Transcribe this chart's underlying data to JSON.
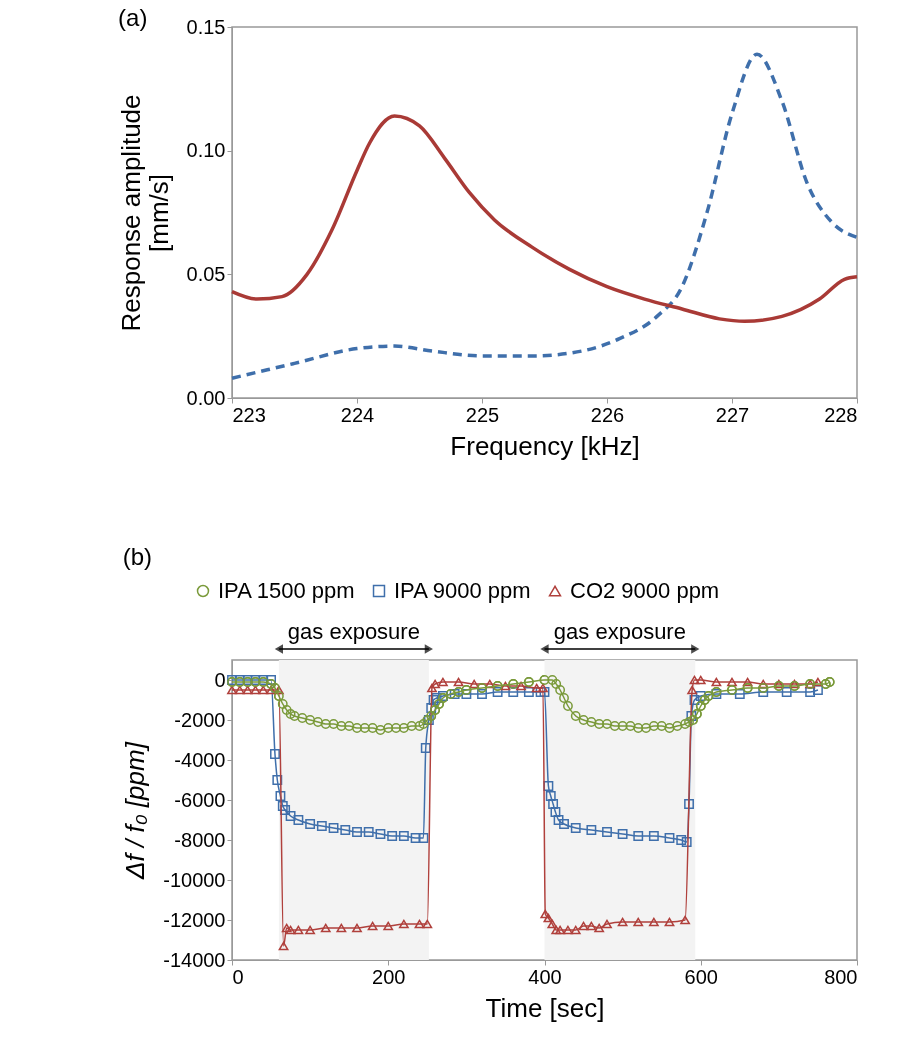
{
  "chart_data": [
    {
      "type": "line",
      "title": "(a)",
      "xlabel": "Frequency [kHz]",
      "ylabel": "Response amplitude [mm/s]",
      "xlim": [
        223,
        228
      ],
      "xticks": [
        223,
        224,
        225,
        226,
        227,
        228
      ],
      "ylim": [
        0,
        0.15
      ],
      "yticks": [
        {
          "value": 0,
          "label": "0.00"
        },
        {
          "value": 0.05,
          "label": "0.05"
        },
        {
          "value": 0.1,
          "label": "0.10"
        },
        {
          "value": 0.15,
          "label": "0.15"
        }
      ],
      "grid": false,
      "series": [
        {
          "color": "#a93a36",
          "line_style": "solid",
          "x": [
            223,
            223.2,
            223.4,
            223.6,
            223.8,
            224,
            224.1,
            224.3,
            224.5,
            224.7,
            224.9,
            225.1,
            225.4,
            225.7,
            226,
            226.3,
            226.6,
            226.9,
            227.1,
            227.4,
            227.7,
            227.9,
            228
          ],
          "values": [
            0.043,
            0.04,
            0.041,
            0.05,
            0.068,
            0.092,
            0.103,
            0.114,
            0.11,
            0.097,
            0.083,
            0.072,
            0.061,
            0.052,
            0.045,
            0.04,
            0.036,
            0.032,
            0.031,
            0.033,
            0.04,
            0.048,
            0.049
          ]
        },
        {
          "color": "#3f6fab",
          "line_style": "dashed",
          "x": [
            223,
            223.5,
            224,
            224.3,
            224.6,
            225,
            225.4,
            225.8,
            226.1,
            226.4,
            226.6,
            226.8,
            227,
            227.2,
            227.4,
            227.6,
            227.8,
            228
          ],
          "values": [
            0.008,
            0.014,
            0.02,
            0.021,
            0.019,
            0.017,
            0.017,
            0.019,
            0.024,
            0.033,
            0.045,
            0.075,
            0.115,
            0.139,
            0.12,
            0.087,
            0.071,
            0.065
          ]
        }
      ]
    },
    {
      "type": "line",
      "title": "(b)",
      "xlabel": "Time [sec]",
      "ylabel": "Δf / f₀ [ppm]",
      "xlim": [
        0,
        800
      ],
      "xticks": [
        0,
        200,
        400,
        600,
        800
      ],
      "ylim": [
        -14000,
        1000
      ],
      "yticks": [
        -14000,
        -12000,
        -10000,
        -8000,
        -6000,
        -4000,
        -2000,
        0
      ],
      "grid": false,
      "legend": "top",
      "bands": [
        {
          "axis": "x",
          "from": 60,
          "to": 252,
          "label": "gas exposure",
          "color": "#f3f3f3"
        },
        {
          "axis": "x",
          "from": 400,
          "to": 593,
          "label": "gas exposure",
          "color": "#f3f3f3"
        }
      ],
      "series": [
        {
          "name": "IPA 1500 ppm",
          "color": "#7a9a3a",
          "marker": "circle",
          "line_style": "solid",
          "x": [
            0,
            10,
            20,
            30,
            40,
            50,
            55,
            60,
            65,
            70,
            75,
            80,
            90,
            100,
            110,
            120,
            130,
            140,
            150,
            160,
            170,
            180,
            190,
            200,
            210,
            220,
            230,
            240,
            245,
            250,
            255,
            260,
            265,
            270,
            280,
            290,
            300,
            320,
            340,
            360,
            380,
            400,
            410,
            415,
            420,
            425,
            430,
            440,
            450,
            460,
            470,
            480,
            490,
            500,
            510,
            520,
            530,
            540,
            550,
            560,
            570,
            580,
            585,
            590,
            595,
            600,
            605,
            610,
            620,
            640,
            660,
            680,
            700,
            720,
            740,
            760,
            765
          ],
          "values": [
            -100,
            -100,
            -100,
            -100,
            -100,
            -200,
            -400,
            -800,
            -1200,
            -1500,
            -1700,
            -1800,
            -1900,
            -2000,
            -2100,
            -2200,
            -2200,
            -2300,
            -2300,
            -2400,
            -2400,
            -2400,
            -2500,
            -2400,
            -2400,
            -2400,
            -2300,
            -2300,
            -2200,
            -2000,
            -1800,
            -1500,
            -1200,
            -900,
            -700,
            -600,
            -500,
            -400,
            -300,
            -200,
            -100,
            0,
            0,
            -200,
            -500,
            -900,
            -1300,
            -1800,
            -2000,
            -2100,
            -2200,
            -2200,
            -2300,
            -2300,
            -2300,
            -2400,
            -2400,
            -2300,
            -2300,
            -2400,
            -2300,
            -2200,
            -2100,
            -2000,
            -1700,
            -1300,
            -1000,
            -800,
            -600,
            -500,
            -400,
            -400,
            -300,
            -300,
            -200,
            -200,
            -100
          ]
        },
        {
          "name": "IPA 9000 ppm",
          "color": "#3f6fab",
          "marker": "square",
          "line_style": "solid",
          "x": [
            0,
            10,
            20,
            30,
            40,
            50,
            55,
            58,
            62,
            65,
            68,
            75,
            85,
            100,
            115,
            130,
            145,
            160,
            175,
            190,
            205,
            220,
            235,
            245,
            248,
            252,
            255,
            258,
            262,
            270,
            285,
            300,
            320,
            340,
            360,
            380,
            395,
            400,
            405,
            408,
            411,
            414,
            418,
            425,
            440,
            460,
            480,
            500,
            520,
            540,
            560,
            575,
            582,
            585,
            588,
            592,
            600,
            620,
            650,
            680,
            710,
            740,
            750
          ],
          "values": [
            0,
            0,
            0,
            0,
            0,
            0,
            -3700,
            -5000,
            -5800,
            -6300,
            -6500,
            -6800,
            -7000,
            -7200,
            -7300,
            -7400,
            -7500,
            -7600,
            -7600,
            -7700,
            -7800,
            -7800,
            -7900,
            -7900,
            -3400,
            -2000,
            -1400,
            -1000,
            -900,
            -800,
            -700,
            -700,
            -700,
            -600,
            -600,
            -600,
            -600,
            -600,
            -5300,
            -5800,
            -6200,
            -6600,
            -7000,
            -7200,
            -7400,
            -7500,
            -7600,
            -7700,
            -7800,
            -7800,
            -7900,
            -8000,
            -8100,
            -6200,
            -1800,
            -1000,
            -800,
            -700,
            -700,
            -600,
            -600,
            -600,
            -500
          ]
        },
        {
          "name": "CO2 9000 ppm",
          "color": "#b0403c",
          "marker": "triangle",
          "line_style": "solid",
          "x": [
            0,
            10,
            20,
            30,
            40,
            50,
            60,
            66,
            70,
            75,
            85,
            100,
            120,
            140,
            160,
            180,
            200,
            220,
            240,
            250,
            256,
            260,
            270,
            290,
            310,
            330,
            350,
            370,
            390,
            398,
            401,
            405,
            410,
            415,
            420,
            430,
            440,
            450,
            460,
            470,
            480,
            500,
            520,
            540,
            560,
            580,
            589,
            592,
            600,
            620,
            640,
            660,
            680,
            700,
            720,
            740,
            750
          ],
          "values": [
            -500,
            -500,
            -500,
            -500,
            -500,
            -500,
            -500,
            -13300,
            -12400,
            -12500,
            -12500,
            -12500,
            -12400,
            -12400,
            -12400,
            -12300,
            -12300,
            -12200,
            -12200,
            -12200,
            -400,
            -200,
            -100,
            -100,
            -200,
            -200,
            -300,
            -300,
            -400,
            -400,
            -11700,
            -11900,
            -12200,
            -12500,
            -12500,
            -12500,
            -12500,
            -12300,
            -12300,
            -12400,
            -12200,
            -12100,
            -12100,
            -12100,
            -12100,
            -12000,
            -500,
            0,
            0,
            -100,
            -100,
            -100,
            -200,
            -200,
            -200,
            -200,
            -100
          ]
        }
      ]
    }
  ]
}
